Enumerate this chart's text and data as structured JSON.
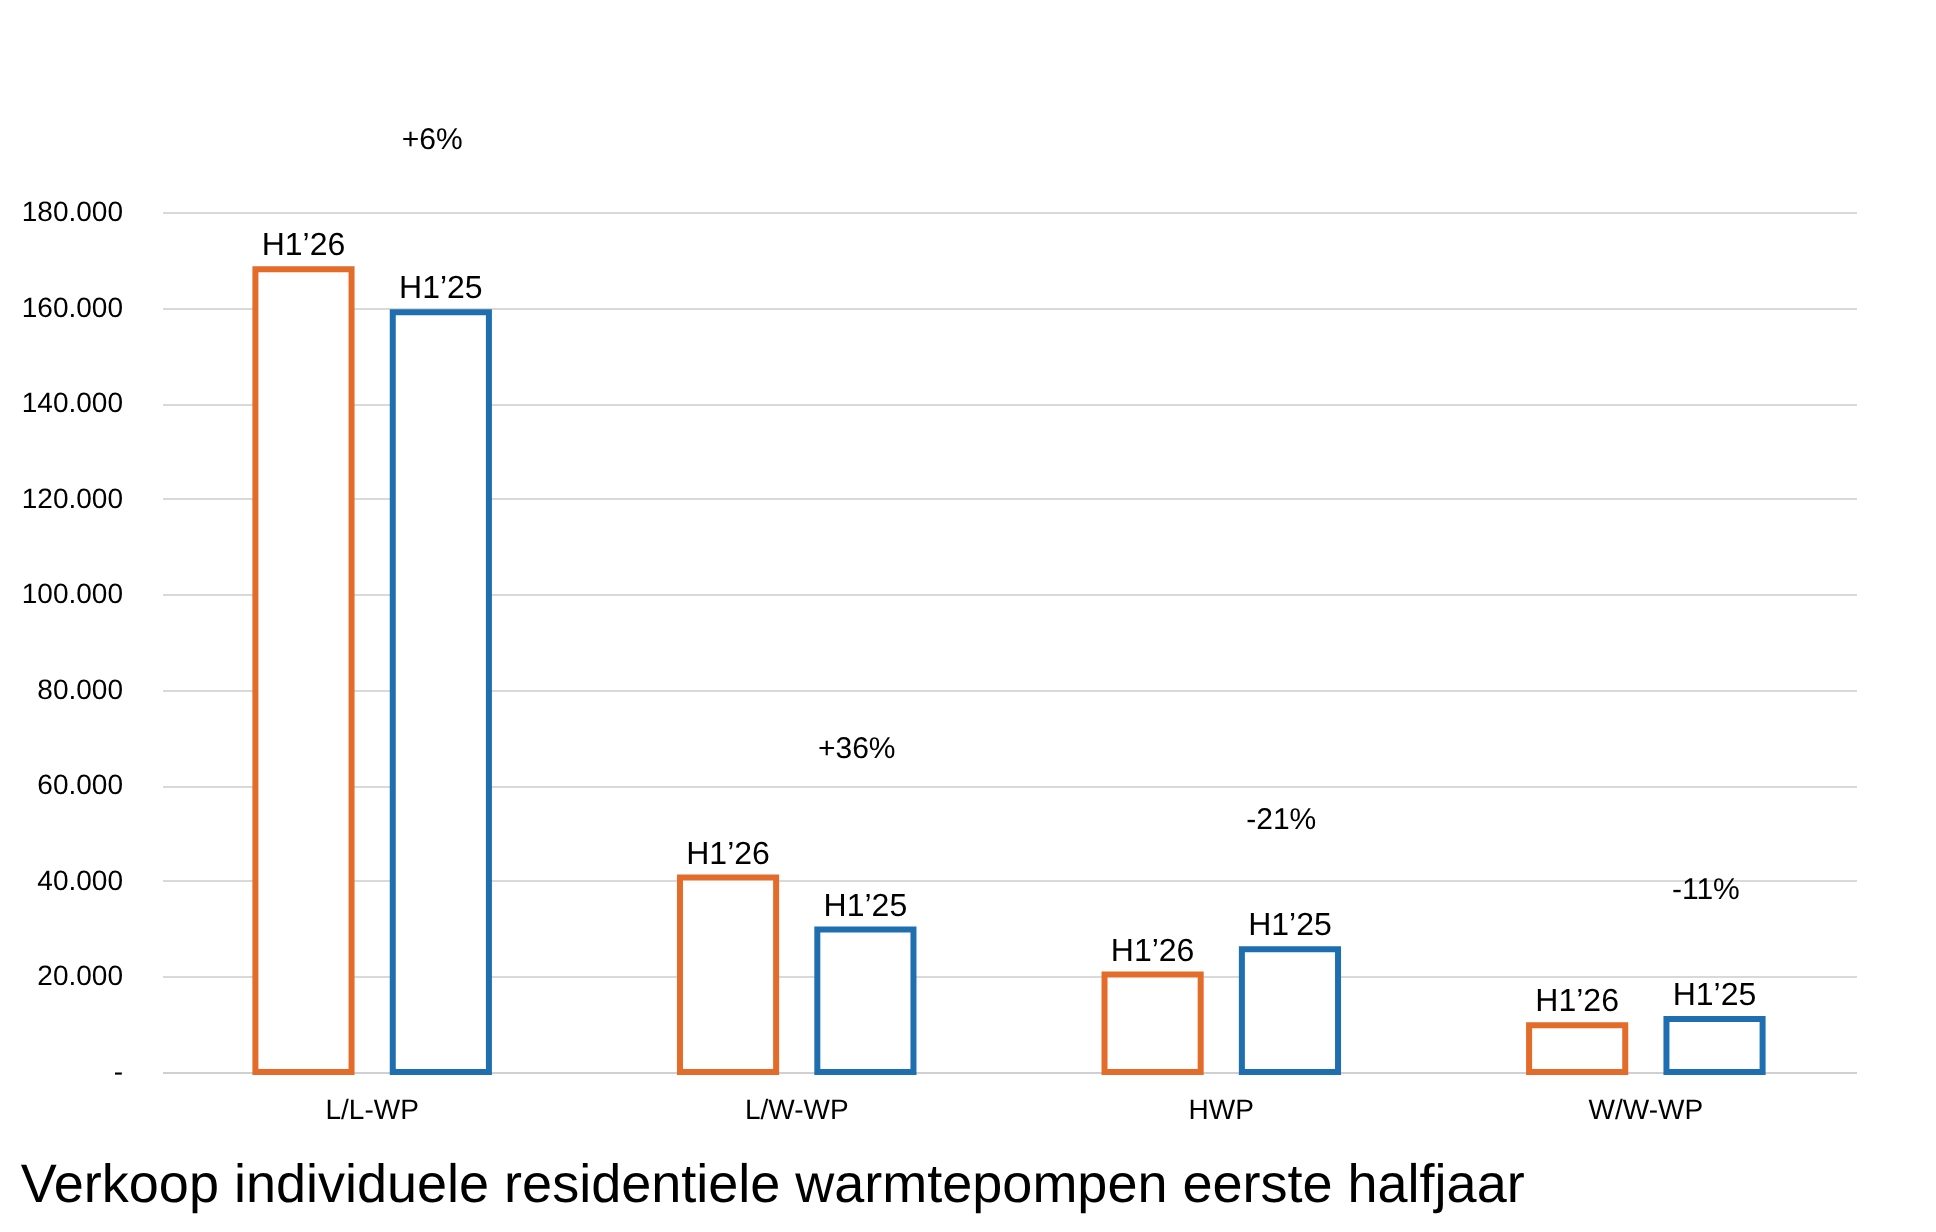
{
  "chart_data": {
    "type": "bar",
    "title": "Verkoop individuele residentiele warmtepompen eerste halfjaar",
    "categories": [
      "L/L-WP",
      "L/W-WP",
      "HWP",
      "W/W-WP"
    ],
    "series": [
      {
        "name": "H1’26",
        "color": "#e46c2a",
        "values": [
          168000,
          40700,
          20400,
          9800
        ]
      },
      {
        "name": "H1’25",
        "color": "#1f6fb0",
        "values": [
          159000,
          29800,
          25700,
          11100
        ]
      }
    ],
    "ylim": [
      0,
      180000
    ],
    "yticks": [
      {
        "value": 0,
        "label": "-"
      },
      {
        "value": 20000,
        "label": "20.000"
      },
      {
        "value": 40000,
        "label": "40.000"
      },
      {
        "value": 60000,
        "label": "60.000"
      },
      {
        "value": 80000,
        "label": "80.000"
      },
      {
        "value": 100000,
        "label": "100.000"
      },
      {
        "value": 120000,
        "label": "120.000"
      },
      {
        "value": 140000,
        "label": "140.000"
      },
      {
        "value": 160000,
        "label": "160.000"
      },
      {
        "value": 180000,
        "label": "180.000"
      }
    ],
    "grid": "y",
    "legend": false,
    "annotations": [
      "+6%",
      "+36%",
      "-21%",
      "-11%"
    ]
  }
}
